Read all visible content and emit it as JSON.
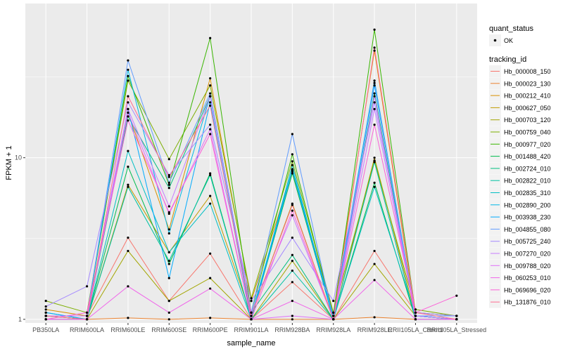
{
  "chart_data": {
    "type": "line",
    "title": "",
    "xlabel": "sample_name",
    "ylabel": "FPKM + 1",
    "y_scale": "log10",
    "ylim": [
      0.95,
      90
    ],
    "y_ticks": [
      1,
      10
    ],
    "y_tick_labels": [
      "1",
      "10"
    ],
    "grid": true,
    "legend_position": "right",
    "panel_background": "#ebebeb",
    "grid_color": "#ffffff",
    "categories": [
      "PB350LA",
      "RRIM600LA",
      "RRIM600LE",
      "RRIM600SE",
      "RRIM600PE",
      "RRIM901LA",
      "RRIM928BA",
      "RRIM928LA",
      "RRIM928LE",
      "RRII105LA_Control",
      "RRII105LA_Stressed"
    ],
    "point_legend": {
      "title": "quant_status",
      "label": "OK",
      "marker": "point",
      "color": "#000000"
    },
    "series_legend_title": "tracking_id",
    "series": [
      {
        "name": "Hb_000008_150",
        "color": "#F8766D",
        "values": [
          1.05,
          1.05,
          3.2,
          1.3,
          2.55,
          1.0,
          1.7,
          1.0,
          2.65,
          1.1,
          1.05
        ]
      },
      {
        "name": "Hb_000023_130",
        "color": "#EA8331",
        "values": [
          1.0,
          1.0,
          1.02,
          1.0,
          1.02,
          1.0,
          1.0,
          1.0,
          1.03,
          1.0,
          1.0
        ]
      },
      {
        "name": "Hb_000212_410",
        "color": "#D89000",
        "values": [
          1.15,
          1.05,
          19.0,
          3.6,
          31.0,
          1.3,
          8.2,
          1.1,
          46.0,
          1.05,
          1.0
        ]
      },
      {
        "name": "Hb_000627_050",
        "color": "#C09B00",
        "values": [
          1.05,
          1.0,
          6.8,
          2.6,
          5.8,
          1.05,
          5.2,
          1.0,
          10.0,
          1.05,
          1.0
        ]
      },
      {
        "name": "Hb_000703_120",
        "color": "#A3A500",
        "values": [
          1.05,
          1.0,
          2.65,
          1.3,
          1.8,
          1.0,
          2.3,
          1.0,
          2.2,
          1.05,
          1.0
        ]
      },
      {
        "name": "Hb_000759_040",
        "color": "#7CAE00",
        "values": [
          1.3,
          1.1,
          30.0,
          9.8,
          28.0,
          1.35,
          9.5,
          1.1,
          9.6,
          1.15,
          1.05
        ]
      },
      {
        "name": "Hb_000977_020",
        "color": "#39B600",
        "values": [
          1.05,
          1.05,
          32.0,
          6.8,
          55.0,
          1.1,
          10.5,
          1.05,
          62.0,
          1.1,
          1.05
        ]
      },
      {
        "name": "Hb_001488_420",
        "color": "#00BB4E",
        "values": [
          1.0,
          1.0,
          8.8,
          2.2,
          8.0,
          1.0,
          8.0,
          1.0,
          7.0,
          1.0,
          1.0
        ]
      },
      {
        "name": "Hb_002724_010",
        "color": "#00BF7D",
        "values": [
          1.05,
          1.0,
          18.0,
          6.5,
          24.0,
          1.1,
          2.5,
          1.0,
          25.0,
          1.05,
          1.0
        ]
      },
      {
        "name": "Hb_002822_010",
        "color": "#00C1A3",
        "values": [
          1.0,
          1.0,
          6.6,
          2.3,
          7.8,
          1.0,
          2.0,
          1.0,
          9.4,
          1.0,
          1.0
        ]
      },
      {
        "name": "Hb_002835_310",
        "color": "#00BFC4",
        "values": [
          1.1,
          1.0,
          11.0,
          2.6,
          5.2,
          1.0,
          9.0,
          1.0,
          6.6,
          1.05,
          1.0
        ]
      },
      {
        "name": "Hb_002890_200",
        "color": "#00B8E5",
        "values": [
          1.05,
          1.05,
          35.0,
          3.4,
          24.0,
          1.05,
          8.5,
          1.05,
          30.0,
          1.05,
          1.0
        ]
      },
      {
        "name": "Hb_003938_230",
        "color": "#00ABFD",
        "values": [
          1.1,
          1.0,
          20.0,
          1.8,
          22.0,
          1.0,
          8.4,
          1.0,
          28.0,
          1.05,
          1.0
        ]
      },
      {
        "name": "Hb_004855_080",
        "color": "#619CFF",
        "values": [
          1.05,
          1.05,
          40.0,
          7.0,
          25.0,
          1.1,
          14.0,
          1.0,
          29.0,
          1.05,
          1.05
        ]
      },
      {
        "name": "Hb_005725_240",
        "color": "#A58AFF",
        "values": [
          1.2,
          1.6,
          22.0,
          7.8,
          16.0,
          1.3,
          3.2,
          1.3,
          22.0,
          1.1,
          1.05
        ]
      },
      {
        "name": "Hb_007270_020",
        "color": "#C77CFF",
        "values": [
          1.05,
          1.05,
          20.0,
          5.0,
          24.0,
          1.1,
          4.4,
          1.0,
          20.0,
          1.05,
          1.0
        ]
      },
      {
        "name": "Hb_009788_020",
        "color": "#DF70F8",
        "values": [
          1.0,
          1.0,
          19.0,
          4.5,
          15.0,
          1.0,
          1.05,
          1.0,
          24.0,
          1.0,
          1.0
        ]
      },
      {
        "name": "Hb_060253_010",
        "color": "#F066EA",
        "values": [
          1.0,
          1.0,
          1.6,
          1.1,
          1.55,
          1.0,
          1.3,
          1.0,
          1.75,
          1.0,
          1.0
        ]
      },
      {
        "name": "Hb_069696_020",
        "color": "#FB61D7",
        "values": [
          1.0,
          1.1,
          17.0,
          4.6,
          14.0,
          1.0,
          4.7,
          1.0,
          16.0,
          1.1,
          1.4
        ]
      },
      {
        "name": "Hb_131876_010",
        "color": "#FF6C91",
        "values": [
          1.05,
          1.0,
          24.0,
          7.6,
          21.0,
          1.05,
          5.1,
          1.0,
          48.0,
          1.1,
          1.0
        ]
      }
    ]
  }
}
